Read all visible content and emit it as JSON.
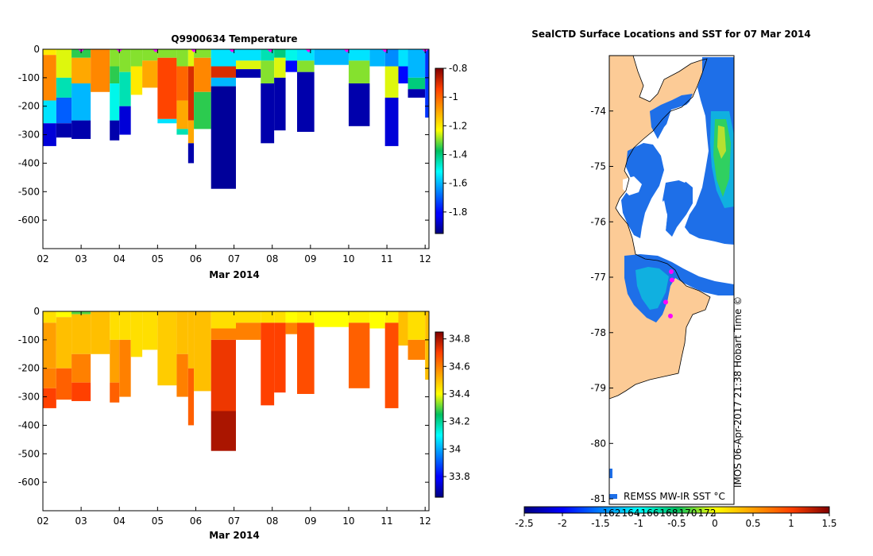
{
  "chart_data": [
    {
      "type": "heatmap",
      "id": "temperature",
      "title": "Q9900634  Temperature",
      "xlabel": "Mar 2014",
      "x_ticks": [
        "02",
        "03",
        "04",
        "05",
        "06",
        "07",
        "08",
        "09",
        "10",
        "11",
        "12"
      ],
      "x_tick_days": [
        2,
        3,
        4,
        5,
        6,
        7,
        8,
        9,
        10,
        11,
        12
      ],
      "xlim": [
        2,
        12.1
      ],
      "y_ticks": [
        0,
        -100,
        -200,
        -300,
        -400,
        -500,
        -600
      ],
      "ylim": [
        -700,
        0
      ],
      "colorbar": {
        "min": -1.95,
        "max": -0.8,
        "ticks": [
          -0.8,
          -1,
          -1.2,
          -1.4,
          -1.6,
          -1.8
        ]
      },
      "profile_markers_day": [
        3.0,
        4.0,
        4.95,
        5.95,
        6.95,
        7.95,
        8.95,
        9.95,
        10.95,
        12.0
      ],
      "profiles": [
        {
          "t0": 2.0,
          "t1": 2.35,
          "maxdepth": 340,
          "layers": [
            [
              0,
              20,
              -1.2
            ],
            [
              20,
              180,
              -1.05
            ],
            [
              180,
              260,
              -1.55
            ],
            [
              260,
              340,
              -1.85
            ]
          ]
        },
        {
          "t0": 2.35,
          "t1": 2.75,
          "maxdepth": 310,
          "layers": [
            [
              0,
              100,
              -1.25
            ],
            [
              100,
              170,
              -1.45
            ],
            [
              170,
              260,
              -1.7
            ],
            [
              260,
              310,
              -1.9
            ]
          ]
        },
        {
          "t0": 2.75,
          "t1": 3.25,
          "maxdepth": 315,
          "layers": [
            [
              0,
              30,
              -1.35
            ],
            [
              30,
              120,
              -1.1
            ],
            [
              120,
              250,
              -1.6
            ],
            [
              250,
              315,
              -1.9
            ]
          ]
        },
        {
          "t0": 3.25,
          "t1": 3.75,
          "maxdepth": 150,
          "layers": [
            [
              0,
              150,
              -1.05
            ]
          ]
        },
        {
          "t0": 3.75,
          "t1": 4.0,
          "maxdepth": 320,
          "layers": [
            [
              0,
              60,
              -1.3
            ],
            [
              60,
              120,
              -1.35
            ],
            [
              120,
              250,
              -1.5
            ],
            [
              250,
              320,
              -1.9
            ]
          ]
        },
        {
          "t0": 4.0,
          "t1": 4.3,
          "maxdepth": 300,
          "layers": [
            [
              0,
              80,
              -1.3
            ],
            [
              80,
              200,
              -1.45
            ],
            [
              200,
              300,
              -1.85
            ]
          ]
        },
        {
          "t0": 4.3,
          "t1": 4.6,
          "maxdepth": 160,
          "layers": [
            [
              0,
              60,
              -1.3
            ],
            [
              60,
              160,
              -1.2
            ]
          ]
        },
        {
          "t0": 4.6,
          "t1": 5.0,
          "maxdepth": 135,
          "layers": [
            [
              0,
              40,
              -1.3
            ],
            [
              40,
              135,
              -1.1
            ]
          ]
        },
        {
          "t0": 5.0,
          "t1": 5.5,
          "maxdepth": 260,
          "layers": [
            [
              0,
              30,
              -1.3
            ],
            [
              30,
              245,
              -0.95
            ],
            [
              245,
              260,
              -1.55
            ]
          ]
        },
        {
          "t0": 5.5,
          "t1": 5.8,
          "maxdepth": 300,
          "layers": [
            [
              0,
              60,
              -1.3
            ],
            [
              60,
              180,
              -1.0
            ],
            [
              180,
              280,
              -1.1
            ],
            [
              280,
              300,
              -1.45
            ]
          ]
        },
        {
          "t0": 5.8,
          "t1": 5.95,
          "maxdepth": 400,
          "layers": [
            [
              0,
              60,
              -1.25
            ],
            [
              60,
              250,
              -0.9
            ],
            [
              250,
              330,
              -1.1
            ],
            [
              330,
              400,
              -1.9
            ]
          ]
        },
        {
          "t0": 5.95,
          "t1": 6.4,
          "maxdepth": 280,
          "layers": [
            [
              0,
              30,
              -1.3
            ],
            [
              30,
              150,
              -1.05
            ],
            [
              150,
              280,
              -1.35
            ]
          ]
        },
        {
          "t0": 6.4,
          "t1": 7.05,
          "maxdepth": 490,
          "layers": [
            [
              0,
              60,
              -1.55
            ],
            [
              60,
              100,
              -0.9
            ],
            [
              100,
              130,
              -1.6
            ],
            [
              130,
              490,
              -1.92
            ]
          ]
        },
        {
          "t0": 7.05,
          "t1": 7.7,
          "maxdepth": 100,
          "layers": [
            [
              0,
              40,
              -1.55
            ],
            [
              40,
              70,
              -1.25
            ],
            [
              70,
              100,
              -1.9
            ]
          ]
        },
        {
          "t0": 7.7,
          "t1": 8.05,
          "maxdepth": 330,
          "layers": [
            [
              0,
              40,
              -1.45
            ],
            [
              40,
              120,
              -1.3
            ],
            [
              120,
              330,
              -1.9
            ]
          ]
        },
        {
          "t0": 8.05,
          "t1": 8.35,
          "maxdepth": 285,
          "layers": [
            [
              0,
              30,
              -1.4
            ],
            [
              30,
              100,
              -1.25
            ],
            [
              100,
              285,
              -1.9
            ]
          ]
        },
        {
          "t0": 8.35,
          "t1": 8.65,
          "maxdepth": 80,
          "layers": [
            [
              0,
              40,
              -1.5
            ],
            [
              40,
              80,
              -1.8
            ]
          ]
        },
        {
          "t0": 8.65,
          "t1": 9.1,
          "maxdepth": 290,
          "layers": [
            [
              0,
              40,
              -1.55
            ],
            [
              40,
              80,
              -1.3
            ],
            [
              80,
              290,
              -1.9
            ]
          ]
        },
        {
          "t0": 9.1,
          "t1": 10.0,
          "maxdepth": 55,
          "layers": [
            [
              0,
              55,
              -1.6
            ]
          ]
        },
        {
          "t0": 10.0,
          "t1": 10.55,
          "maxdepth": 270,
          "layers": [
            [
              0,
              40,
              -1.55
            ],
            [
              40,
              120,
              -1.3
            ],
            [
              120,
              270,
              -1.9
            ]
          ]
        },
        {
          "t0": 10.55,
          "t1": 10.95,
          "maxdepth": 60,
          "layers": [
            [
              0,
              60,
              -1.6
            ]
          ]
        },
        {
          "t0": 10.95,
          "t1": 11.3,
          "maxdepth": 340,
          "layers": [
            [
              0,
              60,
              -1.65
            ],
            [
              60,
              170,
              -1.25
            ],
            [
              170,
              340,
              -1.85
            ]
          ]
        },
        {
          "t0": 11.3,
          "t1": 11.55,
          "maxdepth": 120,
          "layers": [
            [
              0,
              60,
              -1.55
            ],
            [
              60,
              120,
              -1.8
            ]
          ]
        },
        {
          "t0": 11.55,
          "t1": 12.0,
          "maxdepth": 170,
          "layers": [
            [
              0,
              100,
              -1.6
            ],
            [
              100,
              140,
              -1.4
            ],
            [
              140,
              170,
              -1.9
            ]
          ]
        },
        {
          "t0": 12.0,
          "t1": 12.1,
          "maxdepth": 240,
          "layers": [
            [
              0,
              240,
              -1.75
            ]
          ]
        }
      ]
    },
    {
      "type": "heatmap",
      "id": "salinity",
      "title": "",
      "xlabel": "Mar 2014",
      "x_ticks": [
        "02",
        "03",
        "04",
        "05",
        "06",
        "07",
        "08",
        "09",
        "10",
        "11",
        "12"
      ],
      "x_tick_days": [
        2,
        3,
        4,
        5,
        6,
        7,
        8,
        9,
        10,
        11,
        12
      ],
      "xlim": [
        2,
        12.1
      ],
      "y_ticks": [
        0,
        -100,
        -200,
        -300,
        -400,
        -500,
        -600
      ],
      "ylim": [
        -700,
        0
      ],
      "colorbar": {
        "min": 33.65,
        "max": 34.85,
        "ticks": [
          34.8,
          34.6,
          34.4,
          34.2,
          34,
          33.8
        ]
      },
      "profiles": [
        {
          "t0": 2.0,
          "t1": 2.35,
          "maxdepth": 340,
          "layers": [
            [
              0,
              40,
              34.45
            ],
            [
              40,
              200,
              34.55
            ],
            [
              200,
              270,
              34.6
            ],
            [
              270,
              340,
              34.7
            ]
          ]
        },
        {
          "t0": 2.35,
          "t1": 2.75,
          "maxdepth": 310,
          "layers": [
            [
              0,
              20,
              34.4
            ],
            [
              20,
              200,
              34.5
            ],
            [
              200,
              310,
              34.65
            ]
          ]
        },
        {
          "t0": 2.75,
          "t1": 3.25,
          "maxdepth": 315,
          "layers": [
            [
              0,
              10,
              34.3
            ],
            [
              10,
              150,
              34.5
            ],
            [
              150,
              250,
              34.6
            ],
            [
              250,
              315,
              34.7
            ]
          ]
        },
        {
          "t0": 3.25,
          "t1": 3.75,
          "maxdepth": 150,
          "layers": [
            [
              0,
              150,
              34.5
            ]
          ]
        },
        {
          "t0": 3.75,
          "t1": 4.0,
          "maxdepth": 320,
          "layers": [
            [
              0,
              100,
              34.45
            ],
            [
              100,
              250,
              34.55
            ],
            [
              250,
              320,
              34.65
            ]
          ]
        },
        {
          "t0": 4.0,
          "t1": 4.3,
          "maxdepth": 300,
          "layers": [
            [
              0,
              100,
              34.45
            ],
            [
              100,
              300,
              34.6
            ]
          ]
        },
        {
          "t0": 4.3,
          "t1": 4.6,
          "maxdepth": 160,
          "layers": [
            [
              0,
              160,
              34.45
            ]
          ]
        },
        {
          "t0": 4.6,
          "t1": 5.0,
          "maxdepth": 135,
          "layers": [
            [
              0,
              135,
              34.45
            ]
          ]
        },
        {
          "t0": 5.0,
          "t1": 5.5,
          "maxdepth": 260,
          "layers": [
            [
              0,
              260,
              34.48
            ]
          ]
        },
        {
          "t0": 5.5,
          "t1": 5.8,
          "maxdepth": 300,
          "layers": [
            [
              0,
              150,
              34.5
            ],
            [
              150,
              300,
              34.6
            ]
          ]
        },
        {
          "t0": 5.8,
          "t1": 5.95,
          "maxdepth": 400,
          "layers": [
            [
              0,
              200,
              34.5
            ],
            [
              200,
              400,
              34.65
            ]
          ]
        },
        {
          "t0": 5.95,
          "t1": 6.4,
          "maxdepth": 280,
          "layers": [
            [
              0,
              280,
              34.5
            ]
          ]
        },
        {
          "t0": 6.4,
          "t1": 7.05,
          "maxdepth": 490,
          "layers": [
            [
              0,
              60,
              34.45
            ],
            [
              60,
              100,
              34.6
            ],
            [
              100,
              350,
              34.72
            ],
            [
              350,
              490,
              34.8
            ]
          ]
        },
        {
          "t0": 7.05,
          "t1": 7.7,
          "maxdepth": 100,
          "layers": [
            [
              0,
              40,
              34.45
            ],
            [
              40,
              100,
              34.6
            ]
          ]
        },
        {
          "t0": 7.7,
          "t1": 8.05,
          "maxdepth": 330,
          "layers": [
            [
              0,
              40,
              34.45
            ],
            [
              40,
              330,
              34.7
            ]
          ]
        },
        {
          "t0": 8.05,
          "t1": 8.35,
          "maxdepth": 285,
          "layers": [
            [
              0,
              40,
              34.45
            ],
            [
              40,
              285,
              34.7
            ]
          ]
        },
        {
          "t0": 8.35,
          "t1": 8.65,
          "maxdepth": 80,
          "layers": [
            [
              0,
              40,
              34.4
            ],
            [
              40,
              80,
              34.6
            ]
          ]
        },
        {
          "t0": 8.65,
          "t1": 9.1,
          "maxdepth": 290,
          "layers": [
            [
              0,
              40,
              34.42
            ],
            [
              40,
              290,
              34.68
            ]
          ]
        },
        {
          "t0": 9.1,
          "t1": 10.0,
          "maxdepth": 55,
          "layers": [
            [
              0,
              55,
              34.4
            ]
          ]
        },
        {
          "t0": 10.0,
          "t1": 10.55,
          "maxdepth": 270,
          "layers": [
            [
              0,
              40,
              34.42
            ],
            [
              40,
              270,
              34.65
            ]
          ]
        },
        {
          "t0": 10.55,
          "t1": 10.95,
          "maxdepth": 60,
          "layers": [
            [
              0,
              60,
              34.4
            ]
          ]
        },
        {
          "t0": 10.95,
          "t1": 11.3,
          "maxdepth": 340,
          "layers": [
            [
              0,
              40,
              34.42
            ],
            [
              40,
              340,
              34.68
            ]
          ]
        },
        {
          "t0": 11.3,
          "t1": 11.55,
          "maxdepth": 120,
          "layers": [
            [
              0,
              120,
              34.5
            ]
          ]
        },
        {
          "t0": 11.55,
          "t1": 12.0,
          "maxdepth": 170,
          "layers": [
            [
              0,
              100,
              34.45
            ],
            [
              100,
              170,
              34.6
            ]
          ]
        },
        {
          "t0": 12.0,
          "t1": 12.1,
          "maxdepth": 240,
          "layers": [
            [
              0,
              240,
              34.5
            ]
          ]
        }
      ]
    },
    {
      "type": "heatmap",
      "id": "sst-map",
      "title": "SealCTD Surface Locations and SST for 07 Mar 2014",
      "y_ticks": [
        -74,
        -75,
        -76,
        -77,
        -78,
        -79,
        -80,
        -81
      ],
      "ylim": [
        -81.1,
        -73.0
      ],
      "colorbar": {
        "min": -2.5,
        "max": 1.5,
        "ticks": [
          -2.5,
          -2,
          -1.5,
          -1,
          -0.5,
          0,
          0.5,
          1,
          1.5
        ],
        "inner_ticks": [
          "162",
          "164",
          "166",
          "168",
          "170",
          "172"
        ]
      },
      "sst_sample_c": [
        -1.6,
        -1.4,
        -1.2,
        -1.3
      ],
      "seal_positions_lat": [
        -76.9,
        -77.05,
        -77.45,
        -77.7
      ]
    }
  ],
  "labels": {
    "temperature_title": "Q9900634  Temperature",
    "xlabel_top": "Mar 2014",
    "xlabel_bottom": "Mar 2014",
    "map_title": "SealCTD Surface Locations and SST for 07 Mar 2014",
    "sst_label": "REMSS MW-IR SST °C",
    "timestamp": "IMOS 06-Apr-2017 21:38 Hobart Time ©"
  },
  "colors": {
    "land": "#fccb96",
    "seal_marker": "#ff00ff",
    "axis": "#000000"
  }
}
